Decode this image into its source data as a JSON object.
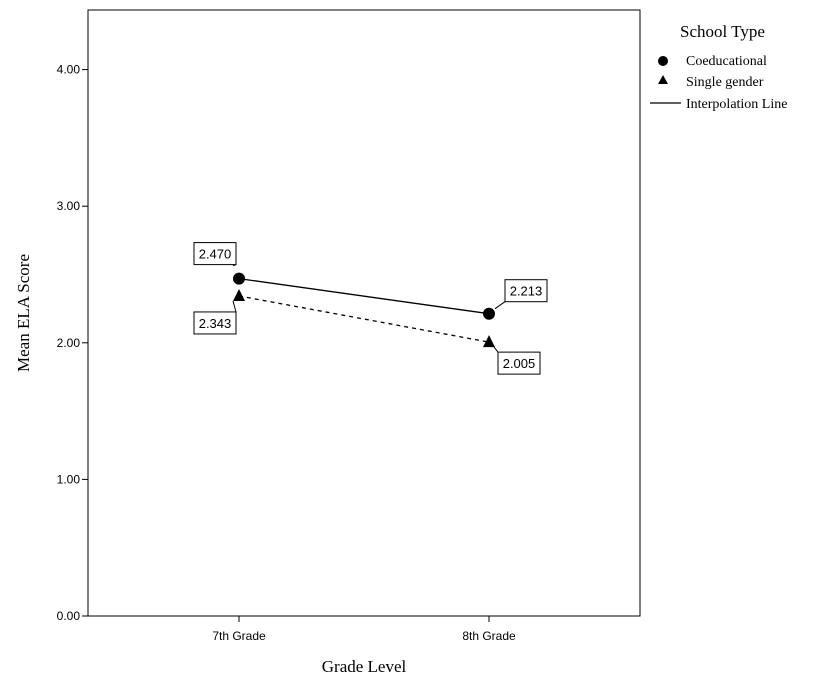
{
  "chart_data": {
    "type": "line",
    "xlabel": "Grade Level",
    "ylabel": "Mean ELA Score",
    "categories": [
      "7th Grade",
      "8th Grade"
    ],
    "ylim": [
      0,
      4.4
    ],
    "yticks": [
      "0.00",
      "1.00",
      "2.00",
      "3.00",
      "4.00"
    ],
    "grid": false,
    "legend_placement": "top-right, outside plot",
    "legend_title": "School Type",
    "series": [
      {
        "name": "Coeducational",
        "values": [
          2.47,
          2.213
        ],
        "labels": [
          "2.470",
          "2.213"
        ],
        "marker": "circle",
        "line": "solid"
      },
      {
        "name": "Single gender",
        "values": [
          2.343,
          2.005
        ],
        "labels": [
          "2.343",
          "2.005"
        ],
        "marker": "triangle",
        "line": "dashed"
      }
    ],
    "legend_line_label": "Interpolation Line"
  }
}
